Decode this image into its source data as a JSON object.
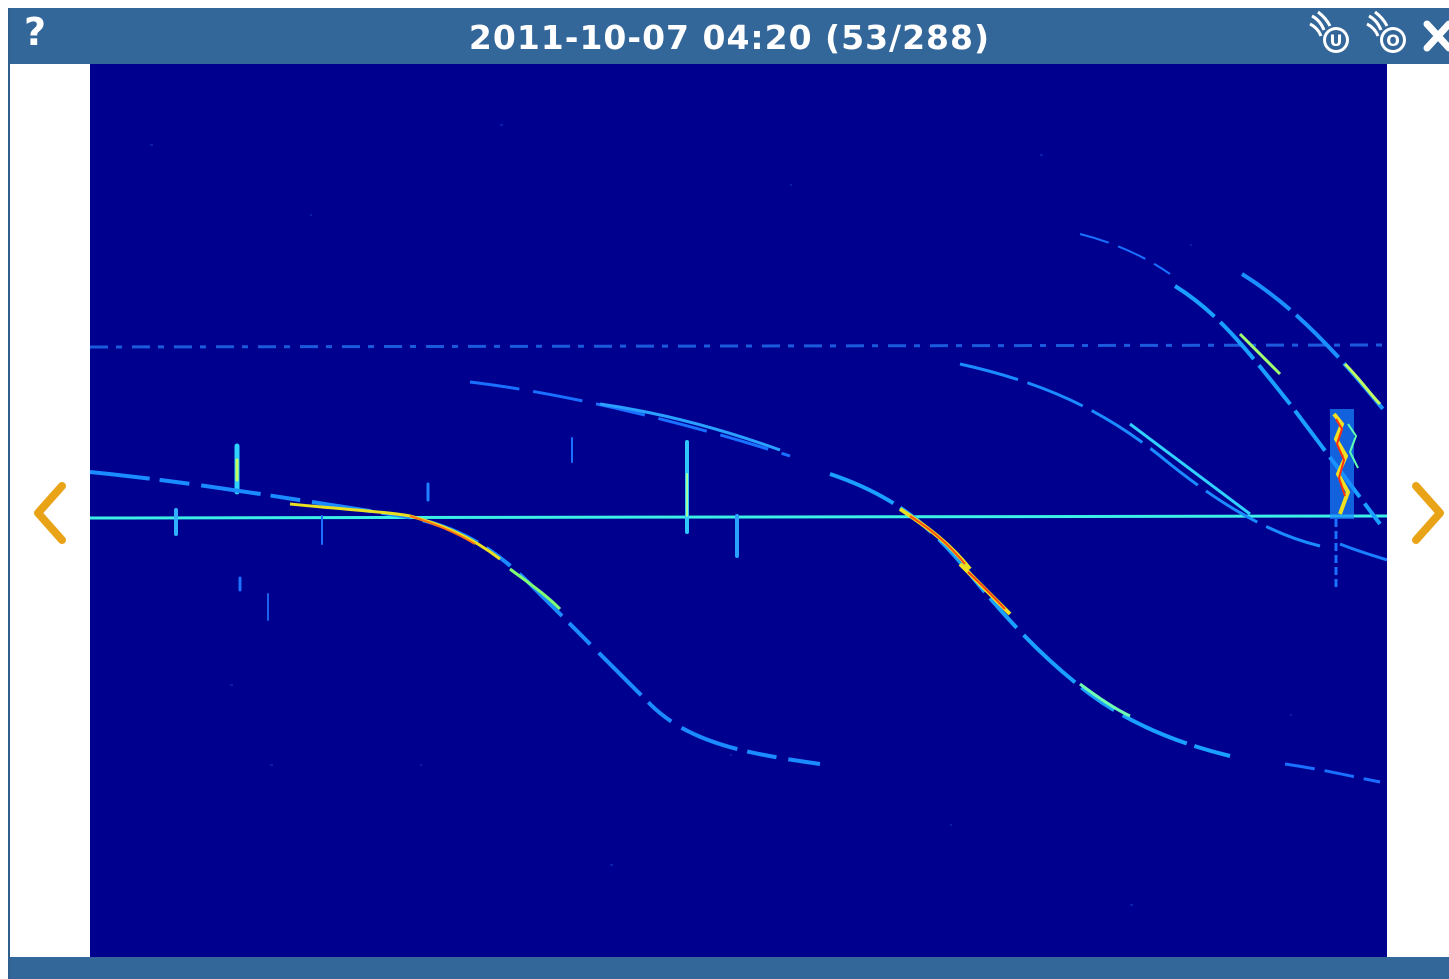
{
  "window": {
    "title": "2011-10-07 04:20 (53/288)",
    "help_label": "?",
    "toolbar_icons": [
      "meteor-u-icon",
      "meteor-o-icon",
      "close-icon"
    ],
    "toolbar_icon_letters": {
      "meteor_u": "U",
      "meteor_o": "O"
    }
  },
  "colors": {
    "titlebar": "#336699",
    "spectrogram_background": "#00008f",
    "arrow": "#e8a317"
  },
  "navigation": {
    "previous": "chevron-left-icon",
    "next": "chevron-right-icon"
  }
}
